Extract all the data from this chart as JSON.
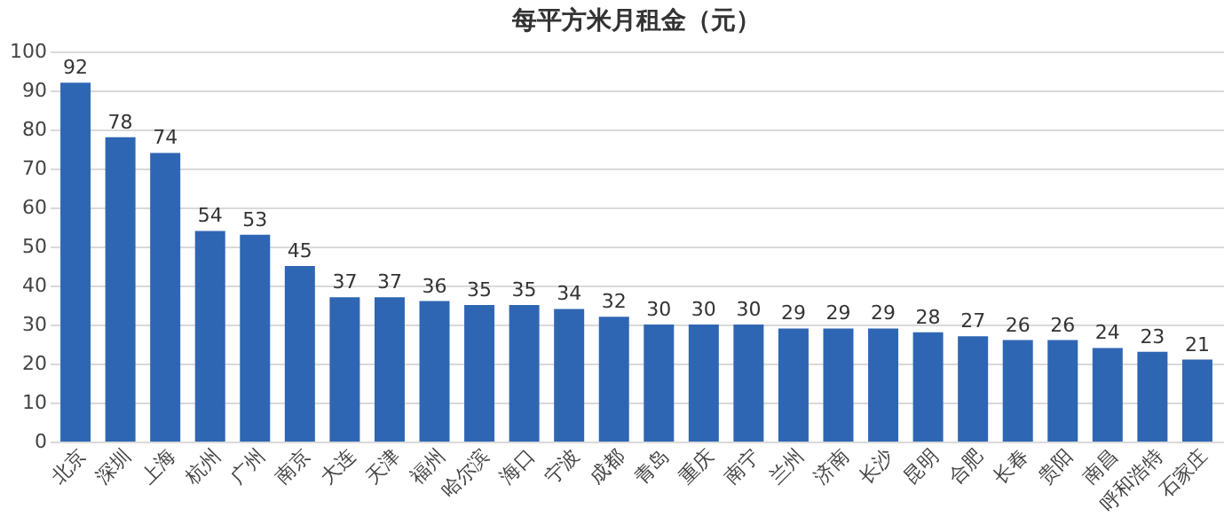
{
  "chart_data": {
    "type": "bar",
    "title": "每平方米月租金（元）",
    "categories": [
      "北京",
      "深圳",
      "上海",
      "杭州",
      "广州",
      "南京",
      "大连",
      "天津",
      "福州",
      "哈尔滨",
      "海口",
      "宁波",
      "成都",
      "青岛",
      "重庆",
      "南宁",
      "兰州",
      "济南",
      "长沙",
      "昆明",
      "合肥",
      "长春",
      "贵阳",
      "南昌",
      "呼和浩特",
      "石家庄"
    ],
    "values": [
      92,
      78,
      74,
      54,
      53,
      45,
      37,
      37,
      36,
      35,
      35,
      34,
      32,
      30,
      30,
      30,
      29,
      29,
      29,
      28,
      27,
      26,
      26,
      24,
      23,
      21
    ],
    "color": "#2f66b3",
    "ylim": [
      0,
      100
    ],
    "yticks": [
      0,
      10,
      20,
      30,
      40,
      50,
      60,
      70,
      80,
      90,
      100
    ],
    "grid": "y",
    "data_labels": true
  }
}
